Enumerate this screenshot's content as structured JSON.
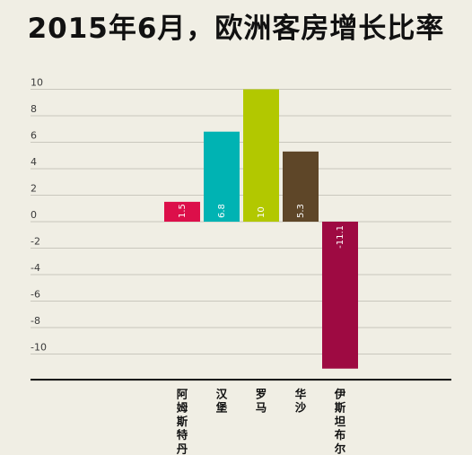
{
  "chart_data": {
    "type": "bar",
    "title": "2015年6月，欧洲客房增长比率",
    "categories": [
      "阿姆斯特丹",
      "汉堡",
      "罗马",
      "华沙",
      "伊斯坦布尔"
    ],
    "values": [
      1.5,
      6.8,
      10,
      5.3,
      -11.1
    ],
    "data_labels": [
      "1.5",
      "6.8",
      "10",
      "5.3",
      "-11.1"
    ],
    "colors": [
      "#dc0f4a",
      "#00b3b3",
      "#b2c800",
      "#5e4628",
      "#9e0a42"
    ],
    "yticks": [
      "10",
      "8",
      "6",
      "4",
      "2",
      "0",
      "-2",
      "-4",
      "-6",
      "-8",
      "-10"
    ],
    "ylim": [
      -12.5,
      10.5
    ],
    "grid": true,
    "xlabel": "",
    "ylabel": ""
  }
}
